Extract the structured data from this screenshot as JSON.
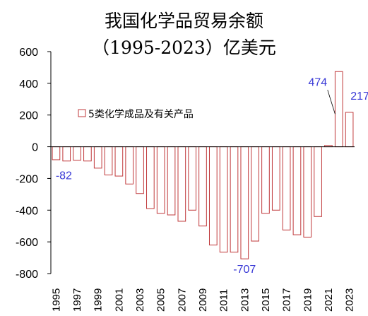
{
  "chart_data": {
    "type": "bar",
    "title_line1": "我国化学品贸易余额",
    "title_line2": "（1995-2023）亿美元",
    "xlabel": "",
    "ylabel": "",
    "ylim": [
      -800,
      600
    ],
    "yticks": [
      600,
      400,
      200,
      0,
      -200,
      -400,
      -600,
      -800
    ],
    "x_tick_labels": [
      "1995",
      "1997",
      "1999",
      "2001",
      "2003",
      "2005",
      "2007",
      "2009",
      "2011",
      "2013",
      "2015",
      "2017",
      "2019",
      "2021",
      "2023"
    ],
    "categories": [
      "1995",
      "1996",
      "1997",
      "1998",
      "1999",
      "2000",
      "2001",
      "2002",
      "2003",
      "2004",
      "2005",
      "2006",
      "2007",
      "2008",
      "2009",
      "2010",
      "2011",
      "2012",
      "2013",
      "2014",
      "2015",
      "2016",
      "2017",
      "2018",
      "2019",
      "2020",
      "2021",
      "2022",
      "2023"
    ],
    "series": [
      {
        "name": "5类化学成品及有关产品",
        "values": [
          -82,
          -90,
          -85,
          -90,
          -135,
          -178,
          -185,
          -235,
          -295,
          -390,
          -420,
          -430,
          -470,
          -400,
          -500,
          -620,
          -665,
          -665,
          -707,
          -595,
          -420,
          -400,
          -525,
          -555,
          -570,
          -440,
          8,
          474,
          217
        ]
      }
    ],
    "data_labels": [
      {
        "category": "1995",
        "text": "-82"
      },
      {
        "category": "2013",
        "text": "-707"
      },
      {
        "category": "2022",
        "text": "474"
      },
      {
        "category": "2023",
        "text": "217"
      }
    ],
    "legend_position": "upper-left inside plot",
    "grid": false,
    "bar_edge_color": "#c0393b",
    "bar_fill_color": "#ffffff",
    "label_color": "#3a3ad6"
  }
}
